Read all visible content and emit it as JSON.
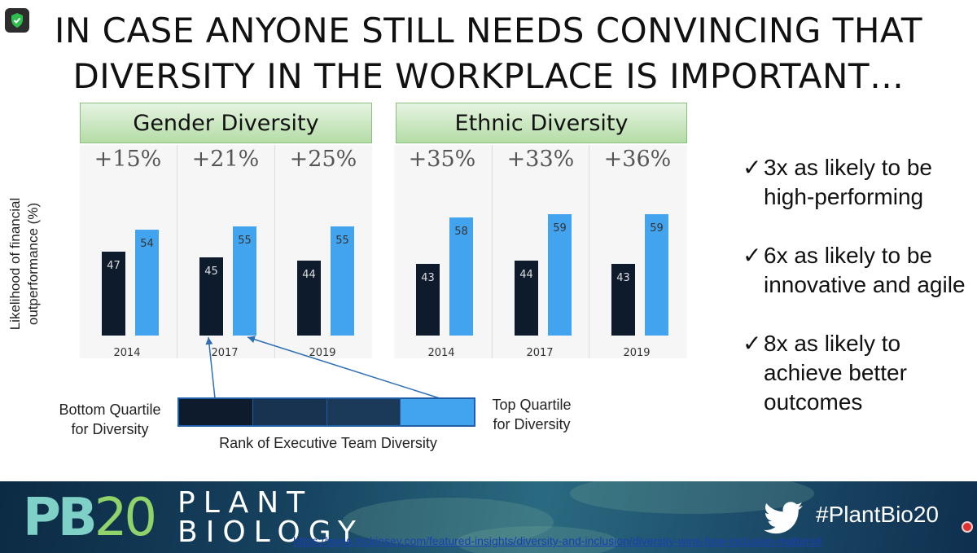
{
  "slide": {
    "title_line1": "IN CASE ANYONE STILL NEEDS CONVINCING THAT",
    "title_line2": "DIVERSITY IN THE WORKPLACE IS IMPORTANT…"
  },
  "chart_data": [
    {
      "type": "bar",
      "title": "Gender Diversity",
      "categories": [
        "2014",
        "2017",
        "2019"
      ],
      "ylabel": "Likelihood of financial outperformance (%)",
      "increases": [
        "+15%",
        "+21%",
        "+25%"
      ],
      "series": [
        {
          "name": "Bottom Quartile for Diversity",
          "color": "#0e1b2c",
          "values": [
            47,
            45,
            44
          ]
        },
        {
          "name": "Top Quartile for Diversity",
          "color": "#42a4ef",
          "values": [
            54,
            55,
            55
          ]
        }
      ]
    },
    {
      "type": "bar",
      "title": "Ethnic Diversity",
      "categories": [
        "2014",
        "2017",
        "2019"
      ],
      "increases": [
        "+35%",
        "+33%",
        "+36%"
      ],
      "series": [
        {
          "name": "Bottom Quartile for Diversity",
          "color": "#0e1b2c",
          "values": [
            43,
            44,
            43
          ]
        },
        {
          "name": "Top Quartile for Diversity",
          "color": "#42a4ef",
          "values": [
            58,
            59,
            59
          ]
        }
      ]
    }
  ],
  "legend": {
    "bottom_label": "Bottom Quartile\nfor Diversity",
    "top_label": "Top Quartile\nfor Diversity",
    "axis_label": "Rank of Executive Team Diversity"
  },
  "bullets": [
    {
      "check": "✓",
      "text": "3x as likely to be high-performing"
    },
    {
      "check": "✓",
      "text": "6x as likely to be innovative and agile"
    },
    {
      "check": "✓",
      "text": "8x as likely to achieve better outcomes"
    }
  ],
  "banner": {
    "logo_pb": "PB",
    "logo_num": "20",
    "plant": "PLANT",
    "biology": "BIOLOGY",
    "hashtag": "#PlantBio20",
    "url": "https://www.mckinsey.com/featured-insights/diversity-and-inclusion/diversity-wins-how-inclusion-matters#"
  },
  "colors": {
    "dark_bar": "#0e1b2c",
    "light_bar": "#42a4ef",
    "header_green": "#b4dca6",
    "banner": "#16425f"
  },
  "icons": [
    "shield-check-icon",
    "twitter-bird-icon",
    "recording-dot-icon"
  ]
}
